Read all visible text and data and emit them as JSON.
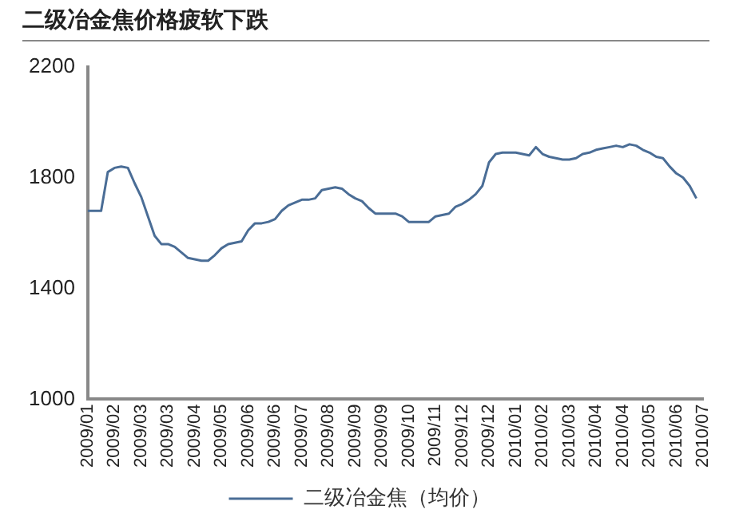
{
  "chart_data": {
    "type": "line",
    "title": "二级冶金焦价格疲软下跌",
    "categories": [
      "2009/01",
      null,
      null,
      null,
      "2009/02",
      null,
      null,
      null,
      "2009/03",
      null,
      null,
      null,
      "2009/03",
      null,
      null,
      null,
      "2009/04",
      null,
      null,
      null,
      "2009/05",
      null,
      null,
      null,
      "2009/06",
      null,
      null,
      null,
      "2009/06",
      null,
      null,
      null,
      "2009/07",
      null,
      null,
      null,
      "2009/08",
      null,
      null,
      null,
      "2009/09",
      null,
      null,
      null,
      "2009/09",
      null,
      null,
      null,
      "2009/10",
      null,
      null,
      null,
      "2009/11",
      null,
      null,
      null,
      "2009/12",
      null,
      null,
      null,
      "2009/12",
      null,
      null,
      null,
      "2010/01",
      null,
      null,
      null,
      "2010/02",
      null,
      null,
      null,
      "2010/03",
      null,
      null,
      null,
      "2010/04",
      null,
      null,
      null,
      "2010/04",
      null,
      null,
      null,
      "2010/05",
      null,
      null,
      null,
      "2010/06",
      null,
      null,
      null,
      "2010/07"
    ],
    "series": [
      {
        "name": "二级冶金焦（均价）",
        "color": "#4a6d96",
        "values": [
          1680,
          1680,
          1680,
          1820,
          1835,
          1840,
          1835,
          1780,
          1730,
          1660,
          1590,
          1560,
          1560,
          1550,
          1530,
          1510,
          1505,
          1500,
          1500,
          1520,
          1545,
          1560,
          1565,
          1570,
          1610,
          1635,
          1635,
          1640,
          1650,
          1680,
          1700,
          1710,
          1720,
          1720,
          1725,
          1755,
          1760,
          1765,
          1760,
          1740,
          1725,
          1715,
          1690,
          1670,
          1670,
          1670,
          1670,
          1660,
          1640,
          1640,
          1640,
          1640,
          1660,
          1665,
          1670,
          1695,
          1705,
          1720,
          1740,
          1770,
          1855,
          1885,
          1890,
          1890,
          1890,
          1885,
          1880,
          1910,
          1885,
          1875,
          1870,
          1865,
          1865,
          1870,
          1885,
          1890,
          1900,
          1905,
          1910,
          1915,
          1910,
          1920,
          1915,
          1900,
          1890,
          1875,
          1870,
          1840,
          1815,
          1800,
          1770,
          1725,
          null
        ]
      }
    ],
    "ylim": [
      1000,
      2200
    ],
    "yticks": [
      1000,
      1400,
      1800,
      2200
    ],
    "grid": false,
    "legend": "bottom",
    "marker": "none",
    "line_style": "solid"
  }
}
